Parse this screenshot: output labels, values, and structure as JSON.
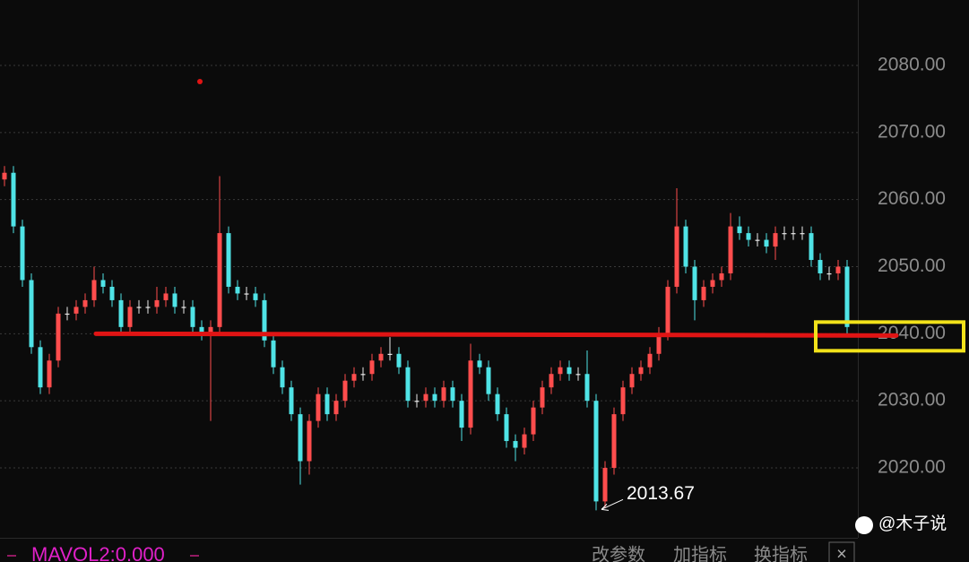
{
  "chart_data": {
    "type": "candlestick",
    "series": {
      "open": [
        2063,
        2064,
        2056,
        2048,
        2038,
        2032,
        2036,
        2043,
        2043,
        2044,
        2045,
        2048,
        2047,
        2045,
        2041,
        2044,
        2044,
        2044,
        2045,
        2046,
        2044,
        2044,
        2041,
        2040,
        2041,
        2055,
        2047,
        2046,
        2046,
        2045,
        2039,
        2035,
        2032,
        2028,
        2021,
        2027,
        2031,
        2028,
        2030,
        2033,
        2034,
        2034,
        2036,
        2037,
        2037,
        2035,
        2030,
        2030,
        2031,
        2030,
        2032,
        2030,
        2026,
        2036,
        2035,
        2031,
        2028,
        2024,
        2023,
        2025,
        2029,
        2032,
        2034,
        2035,
        2034,
        2034,
        2030,
        2015,
        2020,
        2028,
        2032,
        2034,
        2035,
        2037,
        2040,
        2047,
        2056,
        2050,
        2045,
        2047,
        2048,
        2049,
        2056,
        2055,
        2054,
        2054,
        2053,
        2055,
        2055,
        2055,
        2055,
        2051,
        2049,
        2049,
        2050
      ],
      "high": [
        2065,
        2065,
        2057,
        2049,
        2039,
        2037,
        2044,
        2044,
        2045,
        2046,
        2050,
        2049,
        2048,
        2046,
        2045,
        2045,
        2045,
        2047,
        2047,
        2047,
        2045,
        2045,
        2042,
        2042,
        2063.5,
        2056,
        2048,
        2047,
        2047,
        2046,
        2040,
        2036,
        2033,
        2029,
        2028,
        2032,
        2032,
        2031,
        2034,
        2035,
        2035,
        2037,
        2038,
        2039.5,
        2038,
        2036,
        2031,
        2032,
        2032,
        2033,
        2033,
        2031,
        2038.5,
        2037,
        2036,
        2032,
        2029,
        2025,
        2026,
        2030,
        2033,
        2035,
        2036,
        2036,
        2035,
        2037.5,
        2031,
        2021,
        2029,
        2033,
        2035,
        2036,
        2038,
        2041,
        2048,
        2061.7,
        2057,
        2051,
        2048,
        2049,
        2050,
        2058,
        2057.5,
        2056,
        2055,
        2055,
        2056,
        2056,
        2056,
        2056,
        2056,
        2052,
        2050,
        2051,
        2051
      ],
      "low": [
        2062,
        2055,
        2047,
        2037,
        2031,
        2031,
        2035,
        2042,
        2042,
        2043,
        2044,
        2046,
        2044,
        2040,
        2040,
        2043,
        2043,
        2043,
        2044,
        2043,
        2043,
        2040,
        2039,
        2027,
        2040,
        2046,
        2045,
        2045,
        2044,
        2038,
        2034,
        2031,
        2027,
        2017.5,
        2019,
        2026,
        2027,
        2027,
        2029,
        2032,
        2033,
        2033,
        2035,
        2036,
        2034,
        2029,
        2029,
        2029,
        2029,
        2029,
        2029,
        2024,
        2025,
        2034,
        2030,
        2027,
        2023,
        2021,
        2022,
        2024,
        2028,
        2031,
        2033,
        2033,
        2033,
        2029,
        2013.67,
        2014,
        2019,
        2027,
        2031,
        2033,
        2034,
        2036,
        2039,
        2046,
        2049,
        2042,
        2044,
        2046,
        2047,
        2048,
        2054,
        2053,
        2053,
        2052,
        2051,
        2054,
        2054,
        2054,
        2050,
        2048,
        2048,
        2048,
        2040
      ],
      "close": [
        2064,
        2056,
        2048,
        2038,
        2032,
        2036,
        2043,
        2043,
        2044,
        2045,
        2048,
        2047,
        2045,
        2041,
        2044,
        2044,
        2044,
        2045,
        2046,
        2044,
        2044,
        2041,
        2040,
        2041,
        2055,
        2047,
        2046,
        2046,
        2045,
        2039,
        2035,
        2032,
        2028,
        2021,
        2027,
        2031,
        2028,
        2030,
        2033,
        2034,
        2034,
        2036,
        2037,
        2037,
        2035,
        2030,
        2030,
        2031,
        2030,
        2032,
        2030,
        2026,
        2036,
        2035,
        2031,
        2028,
        2024,
        2023,
        2025,
        2029,
        2032,
        2034,
        2035,
        2034,
        2034,
        2030,
        2015,
        2020,
        2028,
        2032,
        2034,
        2035,
        2037,
        2040,
        2047,
        2056,
        2050,
        2045,
        2047,
        2048,
        2049,
        2056,
        2055,
        2054,
        2054,
        2053,
        2055,
        2055,
        2055,
        2055,
        2051,
        2049,
        2049,
        2050,
        2041
      ]
    },
    "up_color": "#ff4d4d",
    "down_color": "#4fe3e6",
    "flat_color": "#e8e8e8",
    "ylim": [
      2009.84,
      2089.76
    ],
    "yticks": [
      {
        "value": 2020,
        "label": "2020.00"
      },
      {
        "value": 2030,
        "label": "2030.00"
      },
      {
        "value": 2040,
        "label": "2040.00"
      },
      {
        "value": 2050,
        "label": "2050.00"
      },
      {
        "value": 2060,
        "label": "2060.00"
      },
      {
        "value": 2070,
        "label": "2070.00"
      },
      {
        "value": 2080,
        "label": "2080.00"
      }
    ],
    "grid": true,
    "reference_line": {
      "value": 2040,
      "color": "#e01414"
    },
    "marker": {
      "value": 2077.6,
      "color": "#e01414"
    },
    "highlight_color": "#f2e21a"
  },
  "toolbar": {
    "indicator": "MAVOL2:0.000",
    "buttons": [
      "改参数",
      "加指标",
      "换指标"
    ],
    "close": "×"
  },
  "watermark": "@木子说"
}
